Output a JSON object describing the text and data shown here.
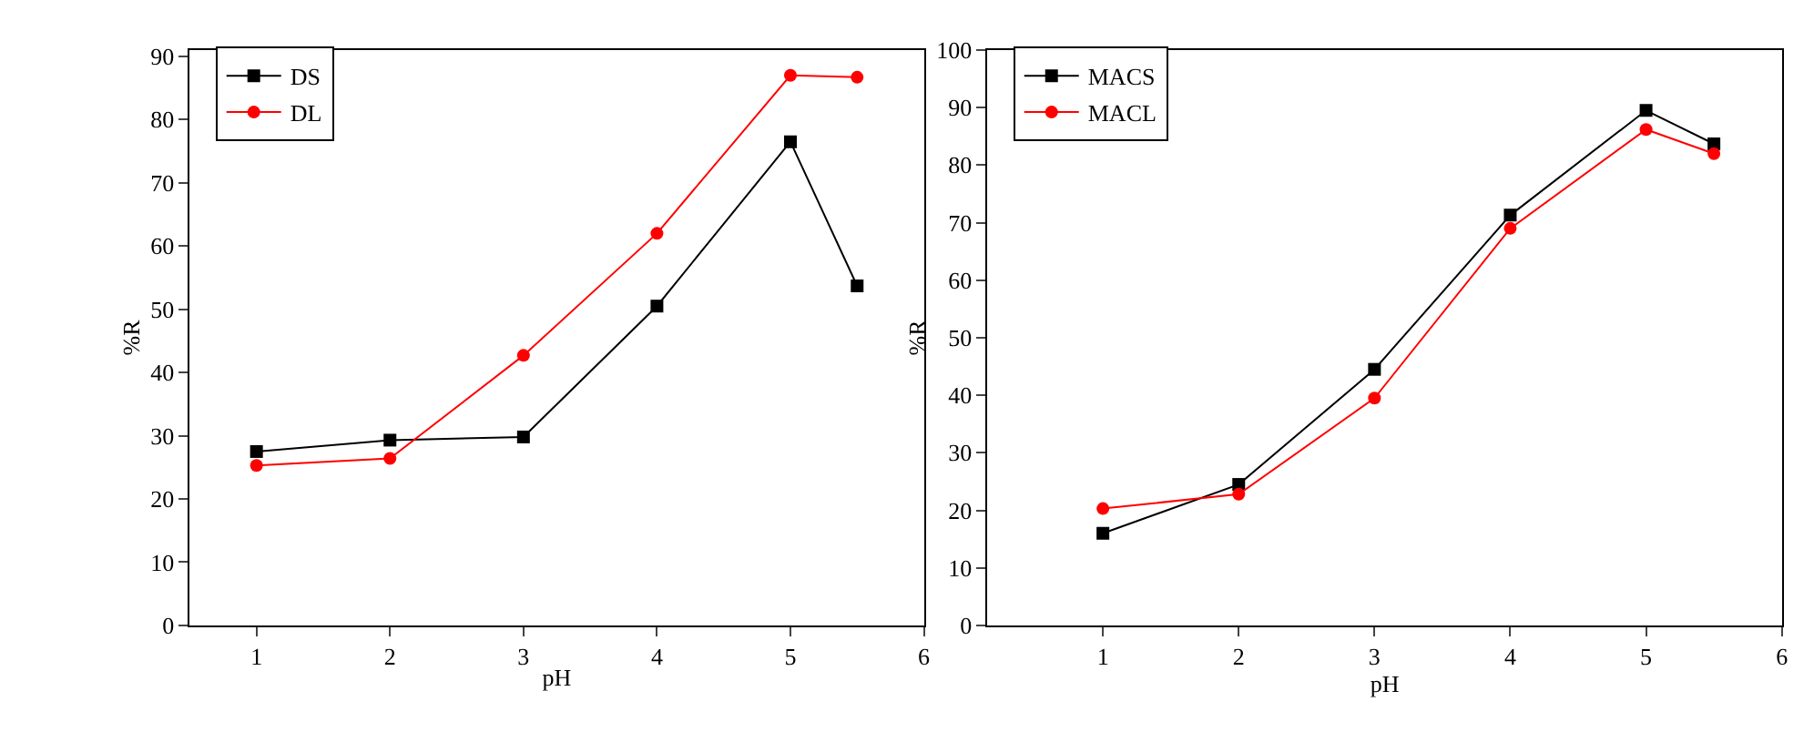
{
  "chart_data": [
    {
      "type": "line",
      "xlabel": "pH",
      "ylabel": "%R",
      "x": [
        1,
        2,
        3,
        4,
        5,
        5.5
      ],
      "xlim": [
        0.5,
        6
      ],
      "xticks": [
        1,
        2,
        3,
        4,
        5,
        6
      ],
      "ylim": [
        0,
        91
      ],
      "yticks": [
        0,
        10,
        20,
        30,
        40,
        50,
        60,
        70,
        80,
        90
      ],
      "legend": "top left",
      "line_style": "solid",
      "series": [
        {
          "name": "DS",
          "color": "#000000",
          "marker": "square",
          "values": [
            27.5,
            29.3,
            29.8,
            50.5,
            76.5,
            53.7
          ]
        },
        {
          "name": "DL",
          "color": "#ff0000",
          "marker": "circle",
          "values": [
            25.3,
            26.4,
            42.7,
            62,
            87,
            86.7
          ]
        }
      ]
    },
    {
      "type": "line",
      "xlabel": "pH",
      "ylabel": "%R",
      "x": [
        1,
        2,
        3,
        4,
        5,
        5.5
      ],
      "xlim": [
        0.15,
        6
      ],
      "xticks": [
        1,
        2,
        3,
        4,
        5,
        6
      ],
      "ylim": [
        0,
        100
      ],
      "yticks": [
        0,
        10,
        20,
        30,
        40,
        50,
        60,
        70,
        80,
        90,
        100
      ],
      "legend": "top left",
      "line_style": "solid",
      "series": [
        {
          "name": "MACS",
          "color": "#000000",
          "marker": "square",
          "values": [
            16,
            24.5,
            44.5,
            71.3,
            89.5,
            83.7
          ]
        },
        {
          "name": "MACL",
          "color": "#ff0000",
          "marker": "circle",
          "values": [
            20.3,
            22.8,
            39.5,
            69,
            86.2,
            82
          ]
        }
      ]
    }
  ]
}
